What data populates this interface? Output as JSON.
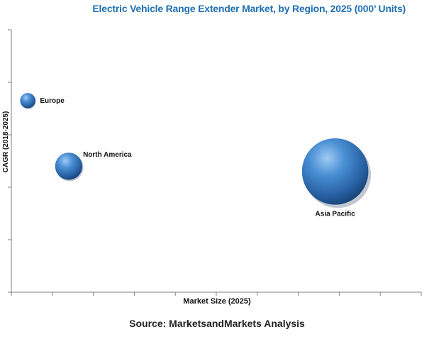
{
  "title": "Electric Vehicle Range Extender Market, by Region, 2025 (000’ Units)",
  "source": "Source: MarketsandMarkets Analysis",
  "colors": {
    "bubble": "#2e6cb0",
    "bubble_highlight": "#8fc1ee",
    "bubble_shadow": "#14396a",
    "axis": "#7f7f7f",
    "title": "#1f6fb2"
  },
  "chart_data": {
    "type": "bubble",
    "title": "Electric Vehicle Range Extender Market, by Region, 2025 (000’ Units)",
    "xlabel": "Market Size (2025)",
    "ylabel": "CAGR (2018-2025)",
    "xlim": [
      0,
      10
    ],
    "ylim": [
      0,
      5
    ],
    "x_ticks": 10,
    "y_ticks": 5,
    "grid": false,
    "legend": "none",
    "series": [
      {
        "label": "Europe",
        "x": 0.4,
        "y": 3.65,
        "size": 0.45
      },
      {
        "label": "North America",
        "x": 1.4,
        "y": 2.4,
        "size": 0.8
      },
      {
        "label": "Asia Pacific",
        "x": 7.9,
        "y": 2.3,
        "size": 1.95
      }
    ]
  }
}
